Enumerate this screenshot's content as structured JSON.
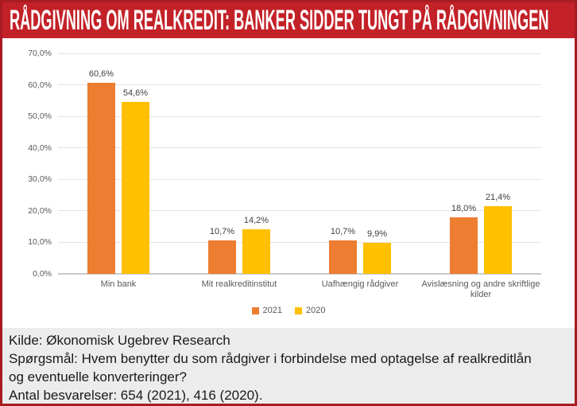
{
  "banner": {
    "title": "RÅDGIVNING OM REALKREDIT: BANKER SIDDER TUNGT PÅ RÅDGIVNINGEN"
  },
  "colors": {
    "banner_red": "#c32128",
    "border_red": "#a81b20",
    "grid": "#e3e3e3",
    "axis": "#c9c9c9",
    "footer_bg": "#ececec"
  },
  "chart_data": {
    "type": "bar",
    "title": "",
    "xlabel": "",
    "ylabel": "",
    "categories": [
      "Min bank",
      "Mit realkreditinstitut",
      "Uafhængig rådgiver",
      "Avislæsning og andre skriftlige kilder"
    ],
    "series": [
      {
        "name": "2021",
        "color": "#ED7D31",
        "values": [
          60.6,
          10.7,
          10.7,
          18.0
        ]
      },
      {
        "name": "2020",
        "color": "#FFC000",
        "values": [
          54.6,
          14.2,
          9.9,
          21.4
        ]
      }
    ],
    "ylim": [
      0,
      70
    ],
    "ytick_step": 10,
    "ytick_format": "da-percent-1dec",
    "data_labels": true,
    "grid": true,
    "legend_position": "bottom"
  },
  "footer": {
    "kilde": "Kilde: Økonomisk Ugebrev Research",
    "question": "Spørgsmål: Hvem benytter du som rådgiver i forbindelse med optagelse af realkreditlån og eventuelle konverteringer?",
    "antal": "Antal besvarelser: 654 (2021), 416 (2020)."
  }
}
